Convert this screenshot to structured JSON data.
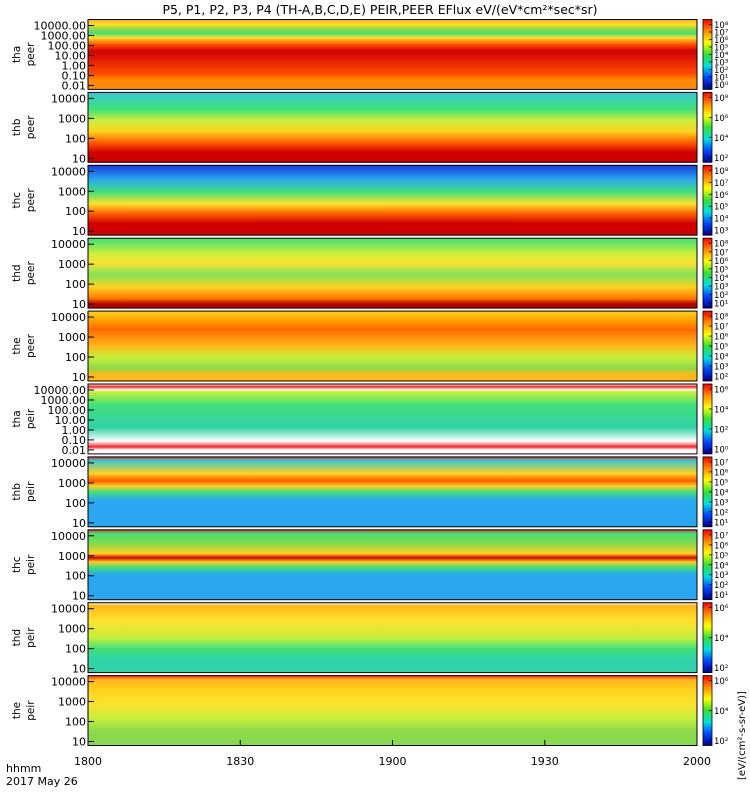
{
  "chart_data": {
    "type": "heatmap",
    "title": "P5, P1, P2, P3, P4 (TH-A,B,C,D,E) PEIR,PEER EFlux eV/(eV*cm²*sec*sr)",
    "x_ticks": [
      "1800",
      "1830",
      "1900",
      "1930",
      "2000"
    ],
    "time_label": "hhmm",
    "date_label": "2017 May 26",
    "colorbar_label": "[eV/(cm²-s-sr-eV)]",
    "colorbar_scale": [
      "blue",
      "cyan",
      "green",
      "yellow",
      "orange",
      "red"
    ],
    "panels": [
      {
        "probe": "tha",
        "product": "peer",
        "yticks": [
          "10000.00",
          "1000.00",
          "100.00",
          "10.00",
          "1.00",
          "0.10",
          "0.01"
        ],
        "cbticks": [
          "10⁸",
          "10⁷",
          "10⁶",
          "10⁵",
          "10⁴",
          "10³",
          "10²",
          "10¹",
          "10⁰"
        ],
        "layers": [
          [
            0.0,
            "#ffae1a"
          ],
          [
            0.07,
            "#ffe01f"
          ],
          [
            0.14,
            "#8ad94a"
          ],
          [
            0.2,
            "#3fe07a"
          ],
          [
            0.26,
            "#ffe12e"
          ],
          [
            0.35,
            "#ff5a00"
          ],
          [
            0.45,
            "#d10000"
          ],
          [
            0.78,
            "#ff4d00"
          ],
          [
            0.86,
            "#ff8a00"
          ]
        ]
      },
      {
        "probe": "thb",
        "product": "peer",
        "yticks": [
          "10000",
          "1000",
          "100",
          "10"
        ],
        "cbticks": [
          "10⁸",
          "10⁶",
          "10⁴",
          "10²"
        ],
        "layers": [
          [
            0.0,
            "#36c8d8"
          ],
          [
            0.24,
            "#3fe07a"
          ],
          [
            0.4,
            "#c8ef3a"
          ],
          [
            0.56,
            "#ffd21f"
          ],
          [
            0.72,
            "#ff5a00"
          ],
          [
            0.86,
            "#d10000"
          ]
        ]
      },
      {
        "probe": "thc",
        "product": "peer",
        "yticks": [
          "10000",
          "1000",
          "100",
          "10"
        ],
        "cbticks": [
          "10⁸",
          "10⁷",
          "10⁶",
          "10⁵",
          "10⁴",
          "10³"
        ],
        "layers": [
          [
            0.0,
            "#1a3be0"
          ],
          [
            0.2,
            "#2aa7f0"
          ],
          [
            0.38,
            "#3fe07a"
          ],
          [
            0.55,
            "#ffe12e"
          ],
          [
            0.68,
            "#ff6a00"
          ],
          [
            0.83,
            "#d10000"
          ]
        ]
      },
      {
        "probe": "thd",
        "product": "peer",
        "yticks": [
          "10000",
          "1000",
          "100",
          "10"
        ],
        "cbticks": [
          "10⁸",
          "10⁷",
          "10⁶",
          "10⁵",
          "10⁴",
          "10³",
          "10²",
          "10¹"
        ],
        "layers": [
          [
            0.0,
            "#3fe07a"
          ],
          [
            0.22,
            "#c8ef3a"
          ],
          [
            0.35,
            "#ffe12e"
          ],
          [
            0.52,
            "#7fe35a"
          ],
          [
            0.7,
            "#ffd21f"
          ],
          [
            0.86,
            "#ff7a00"
          ],
          [
            0.94,
            "#b40000"
          ]
        ]
      },
      {
        "probe": "the",
        "product": "peer",
        "yticks": [
          "10000",
          "1000",
          "100",
          "10"
        ],
        "cbticks": [
          "10⁸",
          "10⁷",
          "10⁶",
          "10⁵",
          "10⁴",
          "10³",
          "10²"
        ],
        "layers": [
          [
            0.0,
            "#ffd21f"
          ],
          [
            0.14,
            "#ff9e00"
          ],
          [
            0.26,
            "#ff6a00"
          ],
          [
            0.5,
            "#ffb81a"
          ],
          [
            0.66,
            "#c8ef3a"
          ],
          [
            0.82,
            "#8ad94a"
          ],
          [
            0.9,
            "#ffb81a"
          ]
        ]
      },
      {
        "probe": "tha",
        "product": "peir",
        "yticks": [
          "10000.00",
          "1000.00",
          "100.00",
          "10.00",
          "1.00",
          "0.10",
          "0.01"
        ],
        "cbticks": [
          "10⁶",
          "10⁴",
          "10²",
          "10⁰"
        ],
        "layers": [
          [
            0.0,
            "#ffffff"
          ],
          [
            0.04,
            "#ff2020"
          ],
          [
            0.08,
            "#ffffff"
          ],
          [
            0.11,
            "#c8ef3a"
          ],
          [
            0.3,
            "#3fe07a"
          ],
          [
            0.62,
            "#2fd3a8"
          ],
          [
            0.82,
            "#ffffff"
          ],
          [
            0.9,
            "#ff2020"
          ],
          [
            0.94,
            "#ffffff"
          ]
        ]
      },
      {
        "probe": "thb",
        "product": "peir",
        "yticks": [
          "10000",
          "1000",
          "100",
          "10"
        ],
        "cbticks": [
          "10⁷",
          "10⁶",
          "10⁵",
          "10⁴",
          "10³",
          "10²",
          "10¹"
        ],
        "layers": [
          [
            0.0,
            "#ff2020"
          ],
          [
            0.05,
            "#36c8d8"
          ],
          [
            0.24,
            "#ffd21f"
          ],
          [
            0.34,
            "#ff5a00"
          ],
          [
            0.42,
            "#ffd21f"
          ],
          [
            0.5,
            "#3fe07a"
          ],
          [
            0.62,
            "#2aa7f0"
          ]
        ]
      },
      {
        "probe": "thc",
        "product": "peir",
        "yticks": [
          "10000",
          "1000",
          "100",
          "10"
        ],
        "cbticks": [
          "10⁷",
          "10⁶",
          "10⁵",
          "10⁴",
          "10³",
          "10²",
          "10¹"
        ],
        "layers": [
          [
            0.0,
            "#ff2020"
          ],
          [
            0.05,
            "#3fe07a"
          ],
          [
            0.2,
            "#8ad94a"
          ],
          [
            0.34,
            "#ffd21f"
          ],
          [
            0.4,
            "#d10000"
          ],
          [
            0.46,
            "#ffd21f"
          ],
          [
            0.54,
            "#3fe07a"
          ],
          [
            0.64,
            "#2aa7f0"
          ]
        ]
      },
      {
        "probe": "thd",
        "product": "peir",
        "yticks": [
          "10000",
          "1000",
          "100",
          "10"
        ],
        "cbticks": [
          "10⁶",
          "10⁴",
          "10²"
        ],
        "layers": [
          [
            0.0,
            "#ffffff"
          ],
          [
            0.04,
            "#ffb81a"
          ],
          [
            0.25,
            "#ffe12e"
          ],
          [
            0.5,
            "#c8ef3a"
          ],
          [
            0.66,
            "#3fe07a"
          ],
          [
            0.82,
            "#2fd3a8"
          ]
        ]
      },
      {
        "probe": "the",
        "product": "peir",
        "yticks": [
          "10000",
          "1000",
          "100",
          "10"
        ],
        "cbticks": [
          "10⁶",
          "10⁴",
          "10²"
        ],
        "layers": [
          [
            0.0,
            "#ff2020"
          ],
          [
            0.06,
            "#ffb81a"
          ],
          [
            0.22,
            "#ffd21f"
          ],
          [
            0.4,
            "#ffe12e"
          ],
          [
            0.6,
            "#c8ef3a"
          ],
          [
            0.8,
            "#8ad94a"
          ]
        ]
      }
    ]
  }
}
